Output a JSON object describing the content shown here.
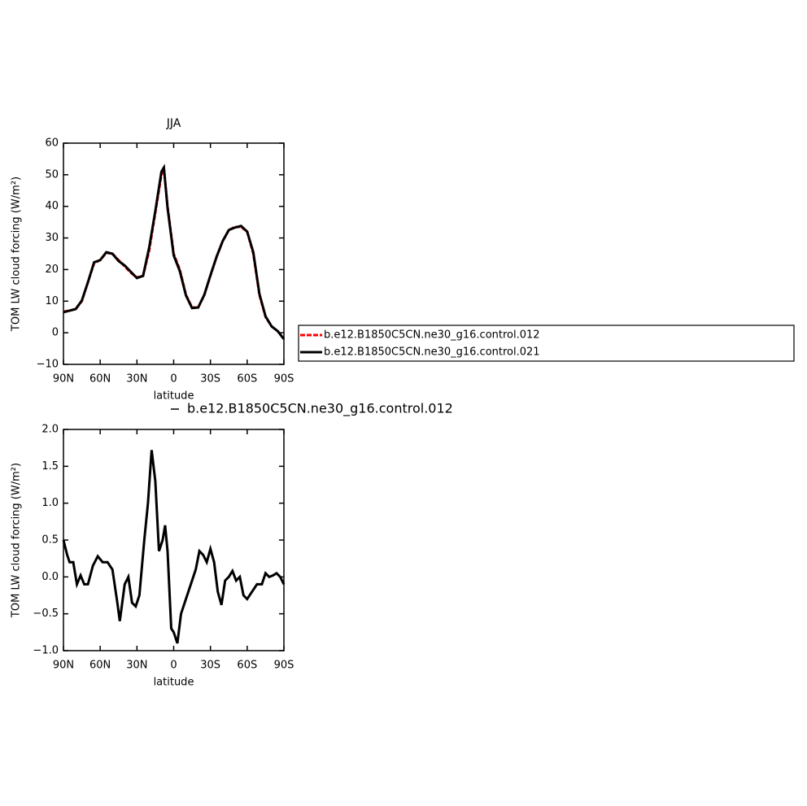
{
  "chart_data": [
    {
      "type": "line",
      "title": "JJA",
      "xlabel": "latitude",
      "ylabel": "TOM LW cloud forcing (W/m²)",
      "x": [
        90,
        85,
        80,
        75,
        70,
        65,
        60,
        55,
        50,
        45,
        40,
        35,
        30,
        25,
        20,
        15,
        10,
        8,
        5,
        0,
        -5,
        -10,
        -15,
        -20,
        -25,
        -30,
        -35,
        -40,
        -45,
        -50,
        -55,
        -60,
        -65,
        -70,
        -75,
        -80,
        -85,
        -90
      ],
      "xlim": [
        90,
        -90
      ],
      "xticks": [
        {
          "value": 90,
          "label": "90N"
        },
        {
          "value": 60,
          "label": "60N"
        },
        {
          "value": 30,
          "label": "30N"
        },
        0,
        {
          "value": -30,
          "label": "30S"
        },
        {
          "value": -60,
          "label": "60S"
        },
        {
          "value": -90,
          "label": "90S"
        }
      ],
      "ylim": [
        -10,
        60
      ],
      "yticks": [
        {
          "value": -10,
          "label": "−10"
        },
        0,
        10,
        20,
        30,
        40,
        50,
        60
      ],
      "legend": "right",
      "series": [
        {
          "name": "b.e12.B1850C5CN.ne30_g16.control.012",
          "color": "#ff0000",
          "dashed": true,
          "values": [
            6.7,
            7,
            7.5,
            10,
            16,
            22,
            23,
            25.3,
            25,
            23,
            21,
            19,
            17.5,
            18,
            26,
            38,
            50,
            52,
            40,
            25,
            20,
            12,
            8,
            8,
            12,
            18,
            24,
            29,
            32.5,
            33.5,
            33.5,
            32,
            25,
            12,
            5,
            2,
            0.5,
            -2
          ]
        },
        {
          "name": "b.e12.B1850C5CN.ne30_g16.control.021",
          "color": "#000000",
          "dashed": false,
          "values": [
            6.5,
            7,
            7.5,
            10.2,
            16,
            22.3,
            23,
            25.5,
            25,
            22.7,
            21.3,
            19.3,
            17.3,
            18,
            27,
            38.5,
            51,
            52.3,
            39.5,
            24.5,
            19.5,
            11.8,
            7.8,
            8,
            12,
            18.2,
            24,
            29,
            32.5,
            33.3,
            33.8,
            32,
            25.5,
            12.3,
            5.2,
            2,
            0.5,
            -2
          ]
        }
      ]
    },
    {
      "type": "line",
      "xlabel": "latitude",
      "ylabel": "TOM LW cloud forcing (W/m²)",
      "x": [
        90,
        87,
        85,
        82,
        79,
        76,
        73,
        70,
        66,
        62,
        58,
        54,
        50,
        46,
        44,
        40,
        37,
        34,
        31,
        28,
        24,
        21,
        18,
        15,
        12,
        9,
        7,
        5,
        2,
        0,
        -3,
        -6,
        -10,
        -14,
        -18,
        -21,
        -24,
        -27,
        -30,
        -33,
        -36,
        -39,
        -42,
        -45,
        -48,
        -51,
        -54,
        -57,
        -60,
        -64,
        -68,
        -72,
        -75,
        -78,
        -81,
        -84,
        -87,
        -90
      ],
      "xlim": [
        90,
        -90
      ],
      "xticks": [
        {
          "value": 90,
          "label": "90N"
        },
        {
          "value": 60,
          "label": "60N"
        },
        {
          "value": 30,
          "label": "30N"
        },
        0,
        {
          "value": -30,
          "label": "30S"
        },
        {
          "value": -60,
          "label": "60S"
        },
        {
          "value": -90,
          "label": "90S"
        }
      ],
      "ylim": [
        -1,
        2
      ],
      "yticks": [
        {
          "value": -1,
          "label": "−1.0"
        },
        {
          "value": -0.5,
          "label": "−0.5"
        },
        {
          "value": 0,
          "label": "0.0"
        },
        0.5,
        {
          "value": 1,
          "label": "1.0"
        },
        1.5,
        {
          "value": 2,
          "label": "2.0"
        }
      ],
      "legend": "top",
      "series": [
        {
          "name": "b.e12.B1850C5CN.ne30_g16.control.012",
          "color": "#000000",
          "dashed": false,
          "values": [
            0.5,
            0.3,
            0.2,
            0.2,
            -0.1,
            0.02,
            -0.1,
            -0.1,
            0.15,
            0.28,
            0.2,
            0.2,
            0.1,
            -0.35,
            -0.6,
            -0.1,
            0.0,
            -0.35,
            -0.4,
            -0.25,
            0.5,
            1.0,
            1.72,
            1.3,
            0.35,
            0.5,
            0.7,
            0.35,
            -0.7,
            -0.75,
            -0.9,
            -0.5,
            -0.3,
            -0.1,
            0.1,
            0.35,
            0.3,
            0.2,
            0.38,
            0.2,
            -0.2,
            -0.38,
            -0.05,
            0.0,
            0.08,
            -0.05,
            0.0,
            -0.25,
            -0.3,
            -0.2,
            -0.1,
            -0.1,
            0.05,
            0.0,
            0.02,
            0.05,
            0.0,
            -0.1
          ]
        }
      ]
    }
  ]
}
